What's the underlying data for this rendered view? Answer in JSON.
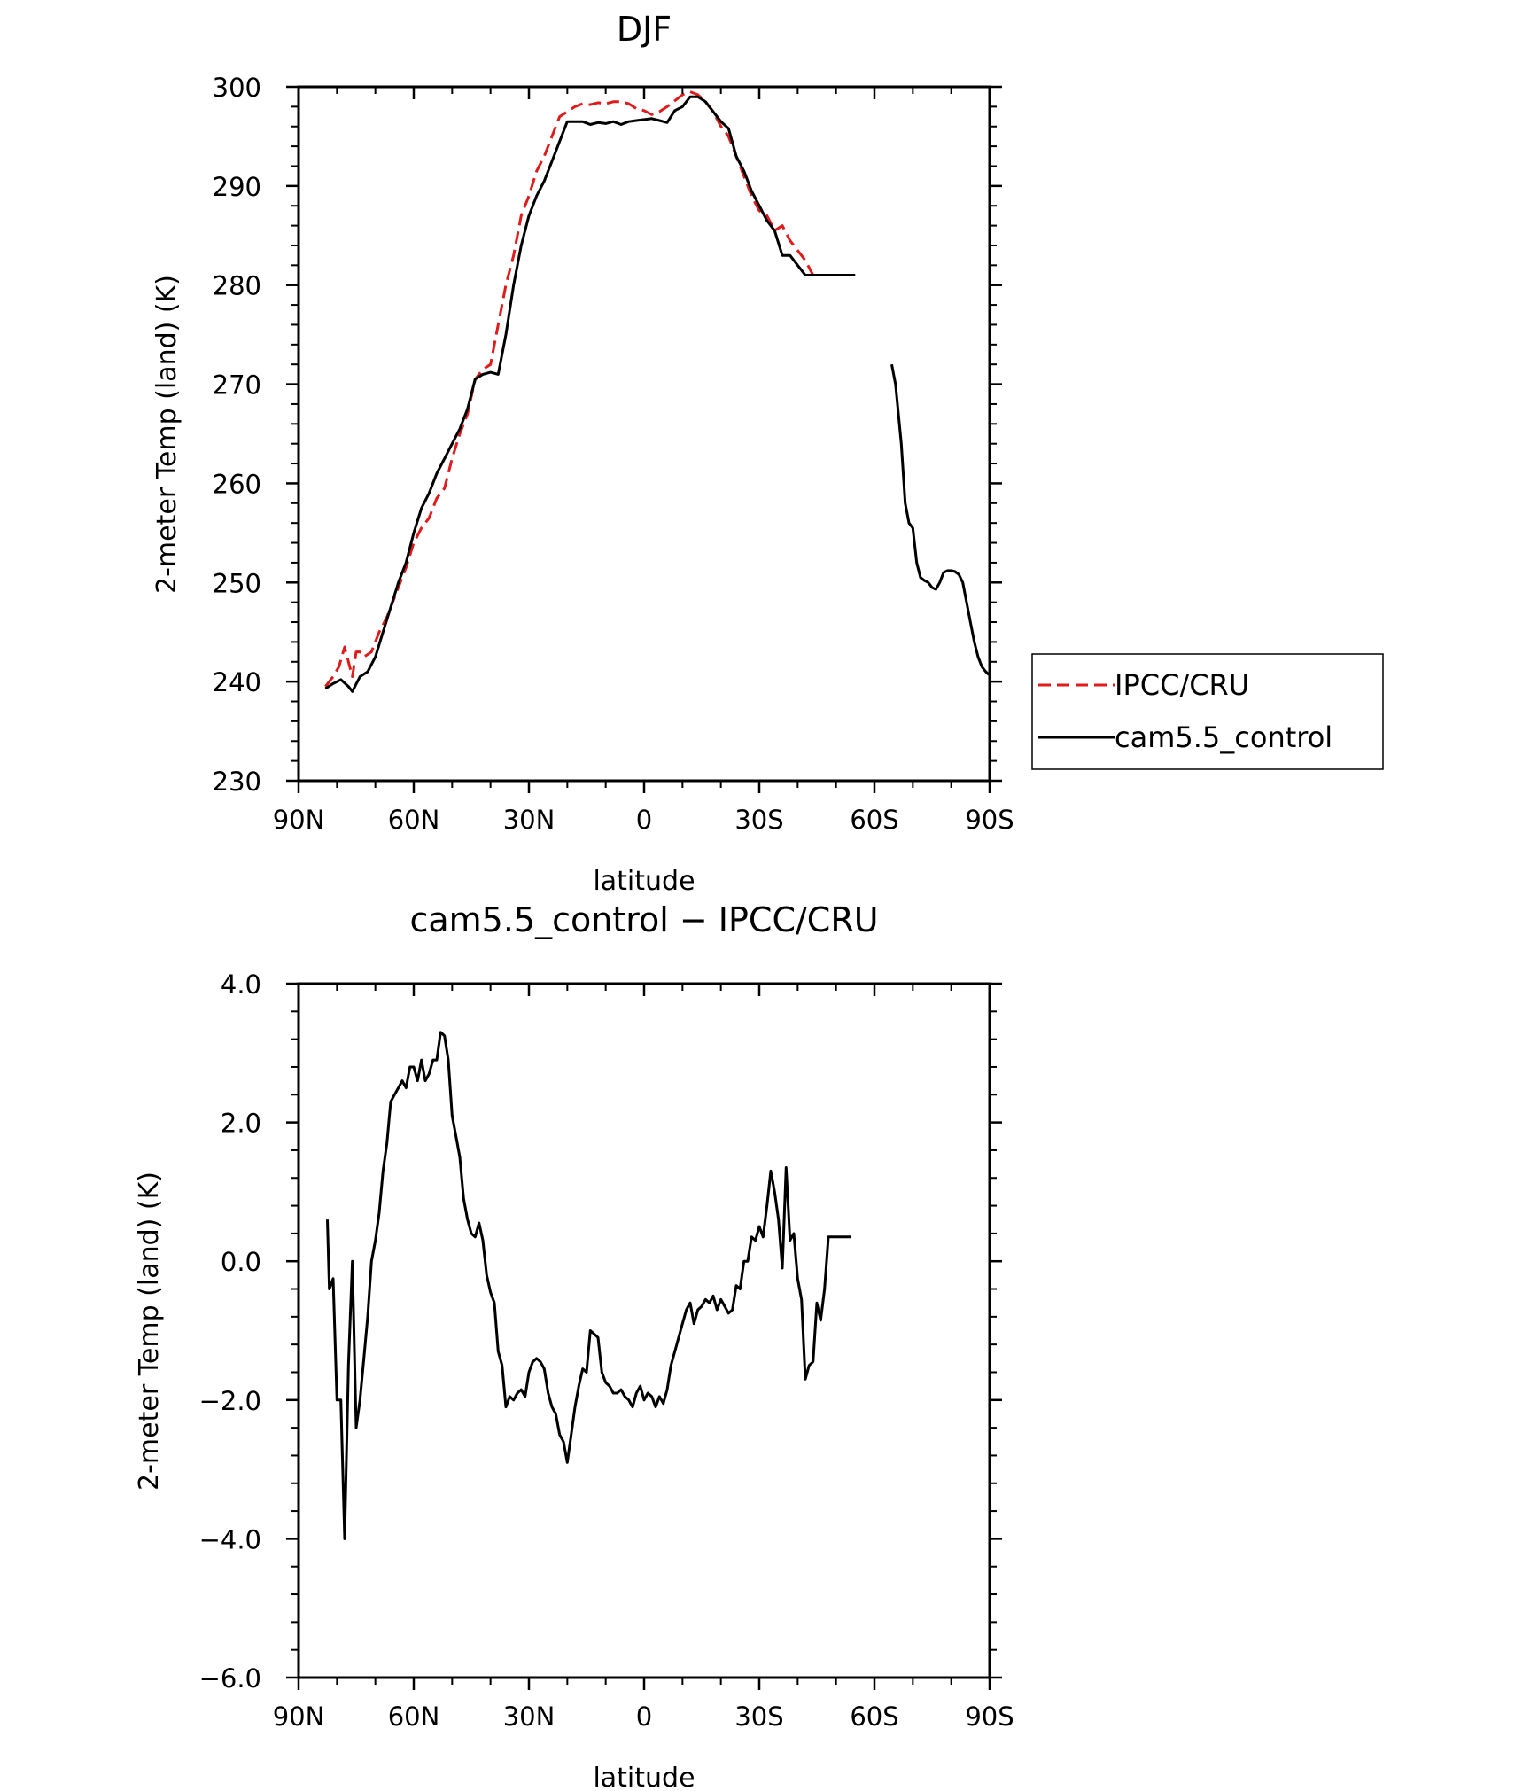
{
  "colors": {
    "obs": "#e01b1b",
    "model": "#000000",
    "axis": "#000000",
    "background": "#ffffff"
  },
  "legend": {
    "items": [
      {
        "label": "IPCC/CRU",
        "style": "dashed",
        "color": "#e01b1b"
      },
      {
        "label": "cam5.5_control",
        "style": "solid",
        "color": "#000000"
      }
    ]
  },
  "chart_data": [
    {
      "type": "line",
      "title": "DJF",
      "xlabel": "latitude",
      "ylabel": "2-meter Temp (land) (K)",
      "xlim": [
        90,
        -90
      ],
      "ylim": [
        230,
        300
      ],
      "xticks": [
        90,
        60,
        30,
        0,
        -30,
        -60,
        -90
      ],
      "xtick_labels": [
        "90N",
        "60N",
        "30N",
        "0",
        "30S",
        "60S",
        "90S"
      ],
      "yticks": [
        230,
        240,
        250,
        260,
        270,
        280,
        290,
        300
      ],
      "ytick_labels": [
        "230",
        "240",
        "250",
        "260",
        "270",
        "280",
        "290",
        "300"
      ],
      "grid": false,
      "legend_position": "right",
      "series": [
        {
          "name": "IPCC/CRU",
          "style": "dashed",
          "color": "#e01b1b",
          "x": [
            83,
            81,
            79.5,
            78,
            77,
            76,
            75,
            74,
            73,
            71,
            69,
            67,
            65,
            62,
            60,
            58,
            56,
            54,
            52,
            50,
            48,
            46,
            44,
            42,
            40,
            38,
            36,
            34,
            32,
            30,
            28,
            26,
            24,
            22,
            20,
            18,
            16,
            14,
            12,
            10,
            8,
            6,
            4,
            2,
            0,
            -2,
            -4,
            -6,
            -8,
            -10,
            -12,
            -14,
            -16,
            -18,
            -20,
            -22,
            -24,
            -26,
            -28,
            -30,
            -32,
            -34,
            -36,
            -38,
            -40,
            -42,
            -44,
            -46,
            -48,
            -50,
            -52,
            -54,
            -55
          ],
          "y": [
            239.5,
            240.5,
            241.5,
            243.5,
            242,
            240.5,
            243,
            243,
            242.5,
            243,
            245,
            246.5,
            248.5,
            251.5,
            254,
            255.5,
            256.5,
            258.5,
            259.5,
            262.5,
            265,
            267,
            270.5,
            271.5,
            272,
            276,
            280,
            283,
            287,
            289,
            291.5,
            293,
            295,
            297,
            297.5,
            298,
            298.3,
            298.2,
            298.4,
            298.3,
            298.5,
            298.5,
            298.3,
            297.8,
            297.6,
            297.2,
            297.5,
            298.0,
            298.6,
            299.2,
            299.5,
            299.2,
            298.5,
            297.5,
            296,
            295,
            293,
            291,
            289,
            287.5,
            287,
            285.5,
            286,
            284.5,
            283.5,
            282.5,
            281,
            281,
            281,
            281,
            281,
            281,
            281
          ]
        },
        {
          "name": "cam5.5_control",
          "style": "solid",
          "color": "#000000",
          "x": [
            83,
            81,
            79,
            77,
            76,
            74,
            72,
            70,
            68,
            66,
            64,
            62,
            60,
            58,
            56,
            54,
            52,
            50,
            48,
            46,
            44,
            42,
            40,
            38,
            36,
            34,
            32,
            30,
            28,
            26,
            24,
            22,
            20,
            18,
            16,
            14,
            12,
            10,
            8,
            6,
            4,
            2,
            0,
            -2,
            -4,
            -6,
            -8,
            -10,
            -12,
            -14,
            -16,
            -18,
            -20,
            -22,
            -24,
            -26,
            -28,
            -30,
            -32,
            -34,
            -36,
            -38,
            -40,
            -42,
            -44,
            -46,
            -48,
            -50,
            -52,
            -54,
            -55
          ],
          "y": [
            239.3,
            239.8,
            240.2,
            239.5,
            239,
            240.5,
            241,
            242.5,
            245,
            247.5,
            250,
            252,
            255,
            257.5,
            259,
            261,
            262.5,
            264,
            265.5,
            267.5,
            270.5,
            271,
            271.2,
            271,
            275,
            280,
            284,
            287,
            289,
            290.5,
            292.5,
            294.5,
            296.5,
            296.5,
            296.5,
            296.2,
            296.4,
            296.3,
            296.5,
            296.2,
            296.5,
            296.6,
            296.7,
            296.8,
            296.6,
            296.4,
            297.6,
            298,
            299,
            299,
            298.5,
            297.5,
            296.5,
            295.8,
            293,
            291.5,
            289.5,
            288,
            286.5,
            285.5,
            283,
            283,
            282,
            281,
            281,
            281,
            281,
            281,
            281,
            281,
            281
          ]
        },
        {
          "name": "cam5.5_control (Antarctica)",
          "style": "solid",
          "color": "#000000",
          "x": [
            -64.5,
            -65.5,
            -67,
            -68,
            -69,
            -70,
            -71,
            -72,
            -73,
            -74,
            -75,
            -76,
            -77,
            -78,
            -79,
            -80,
            -81,
            -82,
            -83,
            -84,
            -85,
            -86,
            -87,
            -88,
            -89,
            -89.8
          ],
          "y": [
            272,
            270,
            264,
            258,
            256,
            255.5,
            252,
            250.5,
            250.2,
            250,
            249.5,
            249.3,
            250,
            251,
            251.2,
            251.2,
            251.1,
            250.8,
            250,
            248,
            246,
            244,
            242.5,
            241.5,
            241,
            240.7
          ]
        }
      ]
    },
    {
      "type": "line",
      "title": "cam5.5_control − IPCC/CRU",
      "xlabel": "latitude",
      "ylabel": "2-meter Temp (land) (K)",
      "xlim": [
        90,
        -90
      ],
      "ylim": [
        -6,
        4
      ],
      "xticks": [
        90,
        60,
        30,
        0,
        -30,
        -60,
        -90
      ],
      "xtick_labels": [
        "90N",
        "60N",
        "30N",
        "0",
        "30S",
        "60S",
        "90S"
      ],
      "yticks": [
        -6,
        -4,
        -2,
        0,
        2,
        4
      ],
      "ytick_labels": [
        "−6.0",
        "−4.0",
        "−2.0",
        "0.0",
        "2.0",
        "4.0"
      ],
      "grid": false,
      "series": [
        {
          "name": "cam5.5_control − IPCC/CRU",
          "style": "solid",
          "color": "#000000",
          "x": [
            82.5,
            82,
            81,
            80,
            79,
            78,
            77,
            76,
            75,
            74,
            73,
            72,
            71,
            70,
            69,
            68,
            67,
            66,
            65,
            64,
            63,
            62,
            61,
            60,
            59,
            58,
            57,
            56,
            55,
            54,
            53,
            52,
            51,
            50,
            49,
            48,
            47,
            46,
            45,
            44,
            43,
            42,
            41,
            40,
            39,
            38,
            37,
            36,
            35,
            34,
            33,
            32,
            31,
            30,
            29,
            28,
            27,
            26,
            25,
            24,
            23,
            22,
            21,
            20,
            19,
            18,
            17,
            16,
            15,
            14,
            13,
            12,
            11,
            10,
            9,
            8,
            7,
            6,
            5,
            4,
            3,
            2,
            1,
            0,
            -1,
            -2,
            -3,
            -4,
            -5,
            -6,
            -7,
            -8,
            -9,
            -10,
            -11,
            -12,
            -13,
            -14,
            -15,
            -16,
            -17,
            -18,
            -19,
            -20,
            -21,
            -22,
            -23,
            -24,
            -25,
            -26,
            -27,
            -28,
            -29,
            -30,
            -31,
            -32,
            -33,
            -34,
            -35,
            -36,
            -37,
            -38,
            -39,
            -40,
            -41,
            -42,
            -43,
            -44,
            -45,
            -46,
            -47,
            -48,
            -49,
            -50,
            -51,
            -52,
            -53,
            -54
          ],
          "y": [
            0.6,
            -0.4,
            -0.25,
            -2.0,
            -2.0,
            -4.0,
            -1.5,
            0.0,
            -2.4,
            -2.0,
            -1.4,
            -0.8,
            0.0,
            0.3,
            0.7,
            1.3,
            1.7,
            2.3,
            2.4,
            2.5,
            2.6,
            2.5,
            2.8,
            2.8,
            2.6,
            2.9,
            2.6,
            2.7,
            2.9,
            2.9,
            3.3,
            3.25,
            2.9,
            2.1,
            1.8,
            1.5,
            0.9,
            0.6,
            0.4,
            0.35,
            0.55,
            0.3,
            -0.2,
            -0.45,
            -0.6,
            -1.3,
            -1.5,
            -2.1,
            -1.95,
            -2.0,
            -1.9,
            -1.85,
            -1.95,
            -1.6,
            -1.45,
            -1.4,
            -1.45,
            -1.55,
            -1.9,
            -2.1,
            -2.2,
            -2.5,
            -2.6,
            -2.9,
            -2.5,
            -2.1,
            -1.8,
            -1.55,
            -1.6,
            -1.0,
            -1.05,
            -1.1,
            -1.6,
            -1.75,
            -1.8,
            -1.9,
            -1.9,
            -1.85,
            -1.95,
            -2.0,
            -2.1,
            -1.9,
            -1.8,
            -2.0,
            -1.9,
            -1.95,
            -2.1,
            -1.95,
            -2.05,
            -1.85,
            -1.5,
            -1.3,
            -1.1,
            -0.9,
            -0.7,
            -0.6,
            -0.9,
            -0.7,
            -0.65,
            -0.55,
            -0.6,
            -0.5,
            -0.7,
            -0.55,
            -0.65,
            -0.75,
            -0.7,
            -0.35,
            -0.4,
            -0.0,
            0.0,
            0.35,
            0.3,
            0.5,
            0.35,
            0.8,
            1.3,
            1.0,
            0.6,
            -0.1,
            1.35,
            0.3,
            0.4,
            -0.25,
            -0.55,
            -1.7,
            -1.5,
            -1.45,
            -0.6,
            -0.85,
            -0.4,
            0.35,
            0.35,
            0.35,
            0.35,
            0.35,
            0.35,
            0.35
          ]
        }
      ]
    }
  ]
}
